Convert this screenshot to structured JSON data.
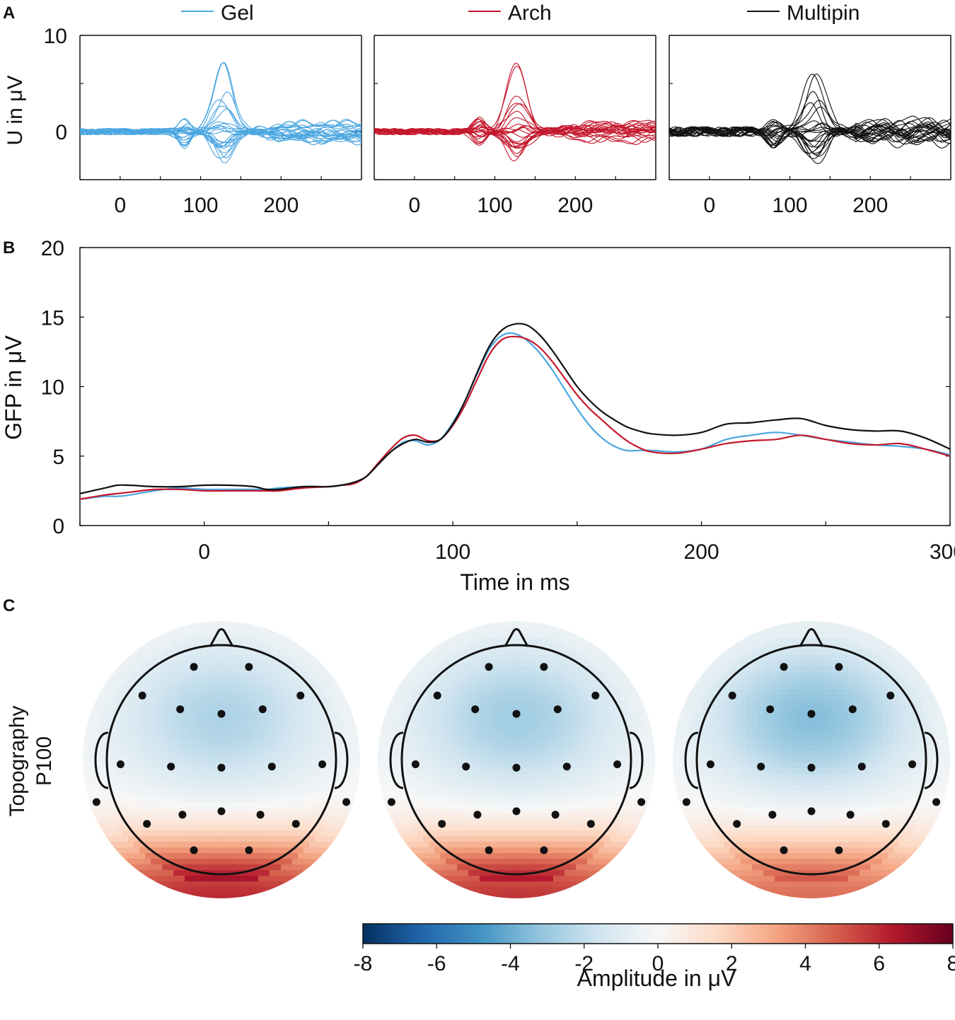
{
  "panel_labels": {
    "a": "A",
    "b": "B",
    "c": "C"
  },
  "colors": {
    "gel": "#4aa6e0",
    "arch": "#c4182c",
    "multipin": "#111111"
  },
  "chart_data": [
    {
      "id": "A",
      "type": "line",
      "description_kind": "butterfly ERP, one trace per electrode, one subplot per electrode system",
      "legend": [
        "Gel",
        "Arch",
        "Multipin"
      ],
      "ylabel": "U in μV",
      "ylim": [
        -5,
        10
      ],
      "yticks": [
        0,
        10
      ],
      "xlim": [
        -50,
        300
      ],
      "xticks": [
        0,
        100,
        200
      ],
      "xticklabels": [
        "0",
        "100",
        "200"
      ],
      "yticklabels": [
        "0",
        "10"
      ],
      "subplots": [
        {
          "name": "Gel",
          "peak_positive": 7.2,
          "peak_latency_ms": 128
        },
        {
          "name": "Arch",
          "peak_positive": 7.1,
          "peak_latency_ms": 128
        },
        {
          "name": "Multipin",
          "peak_positive": 6.4,
          "peak_latency_ms": 130
        }
      ]
    },
    {
      "id": "B",
      "type": "line",
      "xlabel": "Time in ms",
      "ylabel": "GFP in μV",
      "xlim": [
        -50,
        300
      ],
      "ylim": [
        0,
        20
      ],
      "xticks": [
        0,
        100,
        200,
        300
      ],
      "xticklabels": [
        "0",
        "100",
        "200",
        "300"
      ],
      "yticks": [
        0,
        5,
        10,
        15,
        20
      ],
      "yticklabels": [
        "0",
        "5",
        "10",
        "15",
        "20"
      ],
      "x": [
        -50,
        -40,
        -35,
        -30,
        -20,
        -10,
        0,
        10,
        20,
        25,
        30,
        40,
        50,
        55,
        60,
        65,
        70,
        75,
        80,
        85,
        90,
        95,
        100,
        105,
        110,
        115,
        120,
        125,
        130,
        135,
        140,
        145,
        150,
        155,
        160,
        165,
        170,
        175,
        180,
        190,
        200,
        210,
        220,
        230,
        240,
        250,
        260,
        270,
        280,
        290,
        300
      ],
      "series": [
        {
          "name": "Gel",
          "values": [
            1.9,
            2.1,
            2.1,
            2.2,
            2.5,
            2.7,
            2.6,
            2.6,
            2.6,
            2.6,
            2.7,
            2.8,
            2.8,
            2.9,
            3.1,
            3.5,
            4.4,
            5.3,
            6.0,
            6.1,
            5.8,
            6.2,
            7.4,
            9.0,
            11.0,
            12.8,
            13.7,
            13.8,
            13.3,
            12.4,
            11.2,
            9.8,
            8.4,
            7.2,
            6.3,
            5.7,
            5.4,
            5.4,
            5.4,
            5.3,
            5.5,
            6.2,
            6.5,
            6.7,
            6.5,
            6.2,
            6.0,
            5.8,
            5.7,
            5.5,
            5.1
          ]
        },
        {
          "name": "Arch",
          "values": [
            1.9,
            2.2,
            2.3,
            2.4,
            2.6,
            2.6,
            2.5,
            2.5,
            2.5,
            2.5,
            2.5,
            2.7,
            2.8,
            2.9,
            3.0,
            3.5,
            4.5,
            5.5,
            6.3,
            6.5,
            6.1,
            6.2,
            7.2,
            8.7,
            10.6,
            12.4,
            13.4,
            13.6,
            13.4,
            12.8,
            11.8,
            10.6,
            9.4,
            8.4,
            7.6,
            6.8,
            6.1,
            5.6,
            5.3,
            5.2,
            5.5,
            5.9,
            6.1,
            6.2,
            6.5,
            6.2,
            5.9,
            5.8,
            5.9,
            5.5,
            5.0
          ]
        },
        {
          "name": "Multipin",
          "values": [
            2.3,
            2.7,
            2.9,
            2.9,
            2.8,
            2.8,
            2.9,
            2.9,
            2.8,
            2.6,
            2.6,
            2.8,
            2.8,
            2.9,
            3.1,
            3.5,
            4.4,
            5.3,
            5.9,
            6.2,
            6.0,
            6.2,
            7.3,
            9.0,
            11.1,
            13.0,
            14.1,
            14.5,
            14.4,
            13.7,
            12.6,
            11.3,
            10.0,
            9.0,
            8.2,
            7.6,
            7.1,
            6.8,
            6.6,
            6.5,
            6.7,
            7.3,
            7.4,
            7.6,
            7.7,
            7.2,
            6.9,
            6.8,
            6.8,
            6.3,
            5.5
          ]
        }
      ]
    },
    {
      "id": "C",
      "type": "heatmap",
      "description_kind": "scalp topography at P100 for Gel, Arch, Multipin",
      "row_label": [
        "Topography",
        "P100"
      ],
      "colorbar": {
        "label": "Amplitude in μV",
        "range": [
          -8,
          8
        ],
        "ticks": [
          -8,
          -6,
          -4,
          -2,
          0,
          2,
          4,
          6,
          8
        ],
        "ticklabels": [
          "-8",
          "-6",
          "-4",
          "-2",
          "0",
          "2",
          "4",
          "6",
          "8"
        ],
        "stops": [
          "#053061",
          "#2166ac",
          "#4393c3",
          "#92c5de",
          "#d1e5f0",
          "#f7f7f7",
          "#fddbc7",
          "#f4a582",
          "#d6604d",
          "#b2182b",
          "#67001f"
        ]
      },
      "maps": [
        {
          "name": "Gel",
          "frontal_amplitude": -2.5,
          "occipital_amplitude": 7.5
        },
        {
          "name": "Arch",
          "frontal_amplitude": -2.8,
          "occipital_amplitude": 7.2
        },
        {
          "name": "Multipin",
          "frontal_amplitude": -3.4,
          "occipital_amplitude": 5.6
        }
      ]
    }
  ]
}
